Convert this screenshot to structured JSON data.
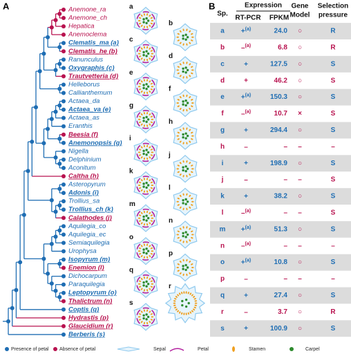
{
  "panel_a": {
    "label": "A",
    "taxa": [
      {
        "label": "Anemone_ra",
        "petal": "absent"
      },
      {
        "label": "Anemone_ch",
        "petal": "absent"
      },
      {
        "label": "Hepatica",
        "petal": "absent"
      },
      {
        "label": "Anemoclema",
        "petal": "absent"
      },
      {
        "label": "Clematis_ma (a)",
        "petal": "present",
        "sampled": true
      },
      {
        "label": "Clematis_he (b)",
        "petal": "absent",
        "sampled": true
      },
      {
        "label": "Ranunculus",
        "petal": "present"
      },
      {
        "label": "Oxygraphis (c)",
        "petal": "present",
        "sampled": true
      },
      {
        "label": "Trautvetteria (d)",
        "petal": "absent",
        "sampled": true
      },
      {
        "label": "Helleborus",
        "petal": "present"
      },
      {
        "label": "Callianthemum",
        "petal": "present"
      },
      {
        "label": "Actaea_da",
        "petal": "present"
      },
      {
        "label": "Actaea_va (e)",
        "petal": "present",
        "sampled": true
      },
      {
        "label": "Actaea_as",
        "petal": "present"
      },
      {
        "label": "Eranthis",
        "petal": "present"
      },
      {
        "label": "Beesia (f)",
        "petal": "absent",
        "sampled": true
      },
      {
        "label": "Anemonopsis (g)",
        "petal": "present",
        "sampled": true
      },
      {
        "label": "Nigella",
        "petal": "present"
      },
      {
        "label": "Delphinium",
        "petal": "present"
      },
      {
        "label": "Aconitum",
        "petal": "present"
      },
      {
        "label": "Caltha (h)",
        "petal": "absent",
        "sampled": true
      },
      {
        "label": "Asteropyrum",
        "petal": "present"
      },
      {
        "label": "Adonis (i)",
        "petal": "present",
        "sampled": true
      },
      {
        "label": "Trollius_sa",
        "petal": "present"
      },
      {
        "label": "Trollius_ch (k)",
        "petal": "present",
        "sampled": true
      },
      {
        "label": "Calathodes (j)",
        "petal": "absent",
        "sampled": true
      },
      {
        "label": "Aquilegia_co",
        "petal": "present"
      },
      {
        "label": "Aquilegia_ec",
        "petal": "present"
      },
      {
        "label": "Semiaquilegia",
        "petal": "present"
      },
      {
        "label": "Urophysa",
        "petal": "present"
      },
      {
        "label": "Isopyrum (m)",
        "petal": "present",
        "sampled": true
      },
      {
        "label": "Enemion (l)",
        "petal": "absent",
        "sampled": true
      },
      {
        "label": "Dichocarpum",
        "petal": "present"
      },
      {
        "label": "Paraquilegia",
        "petal": "present"
      },
      {
        "label": "Leptopyrum (o)",
        "petal": "present",
        "sampled": true
      },
      {
        "label": "Thalictrum (n)",
        "petal": "absent",
        "sampled": true
      },
      {
        "label": "Coptis (q)",
        "petal": "present",
        "sampled": true
      },
      {
        "label": "Hydrastis (p)",
        "petal": "absent",
        "sampled": true
      },
      {
        "label": "Glaucidium (r)",
        "petal": "absent",
        "sampled": true
      },
      {
        "label": "Berberis (s)",
        "petal": "present",
        "sampled": true
      }
    ],
    "legend": [
      "Presence of petal",
      "Absence of petal",
      "Sepal",
      "Petal",
      "Stamen",
      "Carpel"
    ]
  },
  "panel_b": {
    "label": "B",
    "header": {
      "sp": "Sp.",
      "expression": "Expression",
      "rt_pcr": "RT-PCR",
      "fpkm": "FPKM",
      "gene_model": [
        "Gene",
        "Model"
      ],
      "selection": [
        "Selection",
        "pressure"
      ]
    },
    "rows": [
      {
        "sp": "a",
        "petal": "present",
        "rt_pcr": "+",
        "note": "(a)",
        "fpkm": "24.0",
        "model": "○",
        "pressure": "R"
      },
      {
        "sp": "b",
        "petal": "absent",
        "rt_pcr": "–",
        "note": "(a)",
        "fpkm": "6.8",
        "model": "○",
        "pressure": "R"
      },
      {
        "sp": "c",
        "petal": "present",
        "rt_pcr": "+",
        "fpkm": "127.5",
        "model": "○",
        "pressure": "S"
      },
      {
        "sp": "d",
        "petal": "absent",
        "rt_pcr": "+",
        "fpkm": "46.2",
        "model": "○",
        "pressure": "S"
      },
      {
        "sp": "e",
        "petal": "present",
        "rt_pcr": "+",
        "note": "(a)",
        "fpkm": "150.3",
        "model": "○",
        "pressure": "S"
      },
      {
        "sp": "f",
        "petal": "absent",
        "rt_pcr": "–",
        "note": "(a)",
        "fpkm": "10.7",
        "model": "×",
        "pressure": "S"
      },
      {
        "sp": "g",
        "petal": "present",
        "rt_pcr": "+",
        "fpkm": "294.4",
        "model": "○",
        "pressure": "S"
      },
      {
        "sp": "h",
        "petal": "absent",
        "rt_pcr": "–",
        "fpkm": "–",
        "model": "–",
        "pressure": "–"
      },
      {
        "sp": "i",
        "petal": "present",
        "rt_pcr": "+",
        "fpkm": "198.9",
        "model": "○",
        "pressure": "S"
      },
      {
        "sp": "j",
        "petal": "absent",
        "rt_pcr": "–",
        "fpkm": "–",
        "model": "–",
        "pressure": "S"
      },
      {
        "sp": "k",
        "petal": "present",
        "rt_pcr": "+",
        "fpkm": "38.2",
        "model": "○",
        "pressure": "S"
      },
      {
        "sp": "l",
        "petal": "absent",
        "rt_pcr": "–",
        "note": "(a)",
        "fpkm": "–",
        "model": "–",
        "pressure": "S"
      },
      {
        "sp": "m",
        "petal": "present",
        "rt_pcr": "+",
        "note": "(a)",
        "fpkm": "51.3",
        "model": "○",
        "pressure": "S"
      },
      {
        "sp": "n",
        "petal": "absent",
        "rt_pcr": "–",
        "note": "(a)",
        "fpkm": "–",
        "model": "–",
        "pressure": "–"
      },
      {
        "sp": "o",
        "petal": "present",
        "rt_pcr": "+",
        "note": "(a)",
        "fpkm": "10.8",
        "model": "○",
        "pressure": "S"
      },
      {
        "sp": "p",
        "petal": "absent",
        "rt_pcr": "–",
        "fpkm": "–",
        "model": "–",
        "pressure": "–"
      },
      {
        "sp": "q",
        "petal": "present",
        "rt_pcr": "+",
        "fpkm": "27.4",
        "model": "○",
        "pressure": "S"
      },
      {
        "sp": "r",
        "petal": "absent",
        "rt_pcr": "–",
        "fpkm": "3.7",
        "model": "○",
        "pressure": "R"
      },
      {
        "sp": "s",
        "petal": "present",
        "rt_pcr": "+",
        "fpkm": "100.9",
        "model": "○",
        "pressure": "S"
      }
    ]
  }
}
